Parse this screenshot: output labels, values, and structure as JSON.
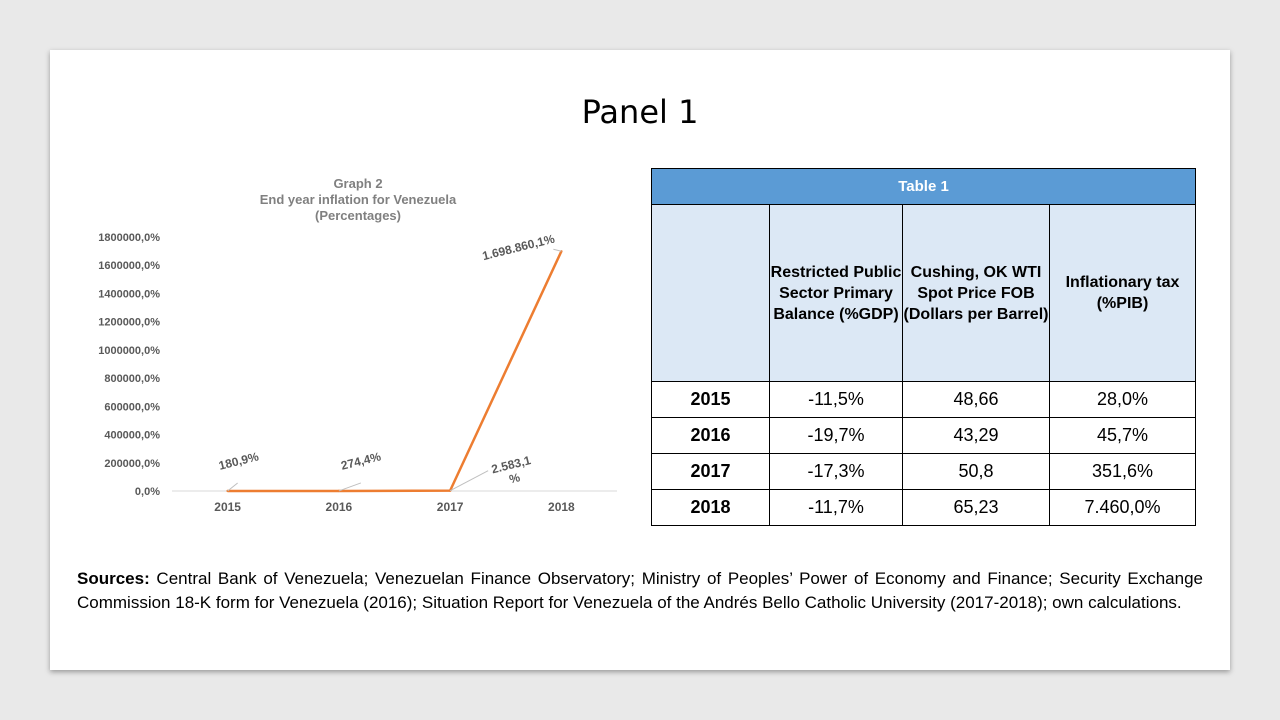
{
  "slide": {
    "title": "Panel 1",
    "sources_label": "Sources:",
    "sources_text": " Central Bank of Venezuela; Venezuelan Finance Observatory; Ministry of Peoples’ Power of Economy and Finance; Security Exchange Commission 18-K form for Venezuela (2016); Situation Report for Venezuela of the Andrés Bello Catholic University (2017-2018); own calculations."
  },
  "chart_data": {
    "type": "line",
    "title": "Graph 2",
    "subtitle_lines": [
      "End year inflation for Venezuela",
      "(Percentages)"
    ],
    "categories": [
      "2015",
      "2016",
      "2017",
      "2018"
    ],
    "values": [
      180.9,
      274.4,
      2583.1,
      1698860.1
    ],
    "data_labels": [
      "180,9%",
      "274,4%",
      "2.583,1 %",
      "1.698.860,1%"
    ],
    "ylim": [
      0,
      1800000
    ],
    "yticks": [
      0,
      200000,
      400000,
      600000,
      800000,
      1000000,
      1200000,
      1400000,
      1600000,
      1800000
    ],
    "ytick_labels": [
      "0,0%",
      "200000,0%",
      "400000,0%",
      "600000,0%",
      "800000,0%",
      "1000000,0%",
      "1200000,0%",
      "1400000,0%",
      "1600000,0%",
      "1800000,0%"
    ],
    "grid": false,
    "line_color": "#ed7d31",
    "label_color": "#595959"
  },
  "table": {
    "caption": "Table 1",
    "headers": [
      "",
      "Restricted Public Sector Primary Balance (%GDP)",
      "Cushing, OK WTI Spot Price FOB (Dollars per Barrel)",
      "Inflationary tax (%PIB)"
    ],
    "rows": [
      [
        "2015",
        "-11,5%",
        "48,66",
        "28,0%"
      ],
      [
        "2016",
        "-19,7%",
        "43,29",
        "45,7%"
      ],
      [
        "2017",
        "-17,3%",
        "50,8",
        "351,6%"
      ],
      [
        "2018",
        "-11,7%",
        "65,23",
        "7.460,0%"
      ]
    ],
    "header_color": "#5b9bd5",
    "subheader_color": "#dce8f5"
  }
}
